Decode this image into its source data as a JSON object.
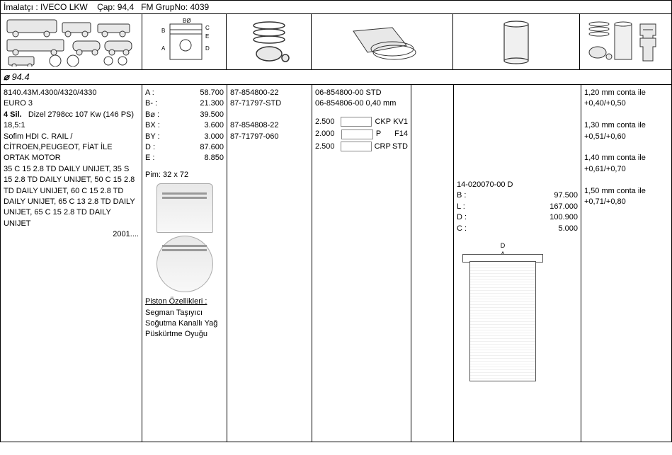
{
  "header": {
    "manufacturer_label": "İmalatçı :",
    "manufacturer": "IVECO LKW",
    "bore_label": "Çap:",
    "bore": "94,4",
    "group_label": "FM GrupNo:",
    "group": "4039"
  },
  "diameter_row": "94.4",
  "columns": {
    "widths": [
      200,
      120,
      120,
      140,
      60,
      180,
      120
    ]
  },
  "col1": {
    "engine_code": "8140.43M.4300/4320/4330",
    "emission": "EURO 3",
    "cyl_bold": "4 Sil.",
    "engine_spec": "Dizel 2798cc 107 Kw (146 PS) 18,5:1",
    "note1": "Sofim HDI C. RAIL / CİTROEN,PEUGEOT, FİAT İLE ORTAK MOTOR",
    "applications": "35 C 15 2.8 TD DAILY UNIJET, 35 S 15 2.8 TD DAILY UNIJET, 50 C 15 2.8 TD DAILY UNIJET, 60 C 15 2.8 TD DAILY UNIJET, 65 C 13 2.8 TD DAILY UNIJET, 65 C 15 2.8 TD DAILY UNIJET",
    "year": "2001...."
  },
  "col2": {
    "dims": [
      {
        "label": "A :",
        "value": "58.700"
      },
      {
        "label": "B- :",
        "value": "21.300"
      },
      {
        "label": "B⌀ :",
        "value": "39.500"
      },
      {
        "label": "BX :",
        "value": "3.600"
      },
      {
        "label": "BY :",
        "value": "3.000"
      },
      {
        "label": "D :",
        "value": "87.600"
      },
      {
        "label": "E :",
        "value": "8.850"
      }
    ],
    "pin": "Pim: 32 x 72",
    "features_title": "Piston Özellikleri :",
    "features": "Segman Taşıyıcı Soğutma Kanallı Yağ Püskürtme Oyuğu"
  },
  "col3": {
    "lines": [
      "87-854800-22",
      "87-71797-STD",
      "",
      "87-854808-22",
      "87-71797-060"
    ]
  },
  "col4": {
    "top_lines": [
      "06-854800-00 STD",
      "06-854806-00 0,40 mm"
    ],
    "rings": [
      {
        "val": "2.500",
        "type": "CKP",
        "code": "KV1"
      },
      {
        "val": "2.000",
        "type": "P",
        "code": "F14"
      },
      {
        "val": "2.500",
        "type": "CRP",
        "code": "STD"
      }
    ]
  },
  "col6": {
    "part": "14-020070-00 D",
    "dims": [
      {
        "label": "B :",
        "value": "97.500"
      },
      {
        "label": "L :",
        "value": "167.000"
      },
      {
        "label": "D :",
        "value": "100.900"
      },
      {
        "label": "C :",
        "value": "5.000"
      }
    ]
  },
  "col7": {
    "lines": [
      "1,20 mm conta ile +0,40/+0,50",
      "",
      "1,30 mm conta ile +0,51/+0,60",
      "",
      "1,40 mm conta ile +0,61/+0,70",
      "",
      "1,50 mm conta ile +0,71/+0,80"
    ]
  },
  "icon_cells": {
    "widths": [
      200,
      120,
      120,
      200,
      180,
      120
    ]
  }
}
